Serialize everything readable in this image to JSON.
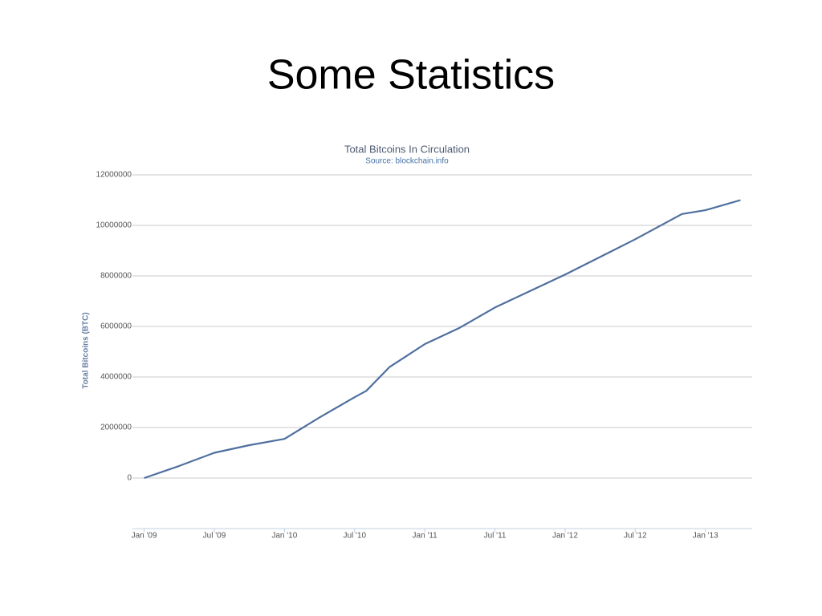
{
  "slide_title": "Some Statistics",
  "chart_data": {
    "type": "line",
    "title": "Total Bitcoins In Circulation",
    "subtitle": "Source: blockchain.info",
    "y_label": "Total Bitcoins (BTC)",
    "x": [
      "2009-01",
      "2009-04",
      "2009-07",
      "2009-10",
      "2010-01",
      "2010-04",
      "2010-07",
      "2010-08",
      "2010-10",
      "2011-01",
      "2011-04",
      "2011-07",
      "2011-10",
      "2012-01",
      "2012-04",
      "2012-07",
      "2012-10",
      "2012-11",
      "2013-01",
      "2013-04"
    ],
    "series": [
      {
        "name": "Total Bitcoins",
        "color": "#4f6f9f",
        "values": [
          0,
          480000,
          1000000,
          1300000,
          1550000,
          2400000,
          3200000,
          3450000,
          4400000,
          5300000,
          5950000,
          6750000,
          7400000,
          8050000,
          8750000,
          9450000,
          10200000,
          10450000,
          10600000,
          11000000
        ]
      }
    ],
    "xlim": [
      "2008-12",
      "2013-05"
    ],
    "xticks": [
      {
        "value": "2009-01",
        "label": "Jan '09"
      },
      {
        "value": "2009-07",
        "label": "Jul '09"
      },
      {
        "value": "2010-01",
        "label": "Jan '10"
      },
      {
        "value": "2010-07",
        "label": "Jul '10"
      },
      {
        "value": "2011-01",
        "label": "Jan '11"
      },
      {
        "value": "2011-07",
        "label": "Jul '11"
      },
      {
        "value": "2012-01",
        "label": "Jan '12"
      },
      {
        "value": "2012-07",
        "label": "Jul '12"
      },
      {
        "value": "2013-01",
        "label": "Jan '13"
      }
    ],
    "ylim": [
      -2000000,
      12000000
    ],
    "yticks": [
      0,
      2000000,
      4000000,
      6000000,
      8000000,
      10000000,
      12000000
    ],
    "grid": true
  }
}
